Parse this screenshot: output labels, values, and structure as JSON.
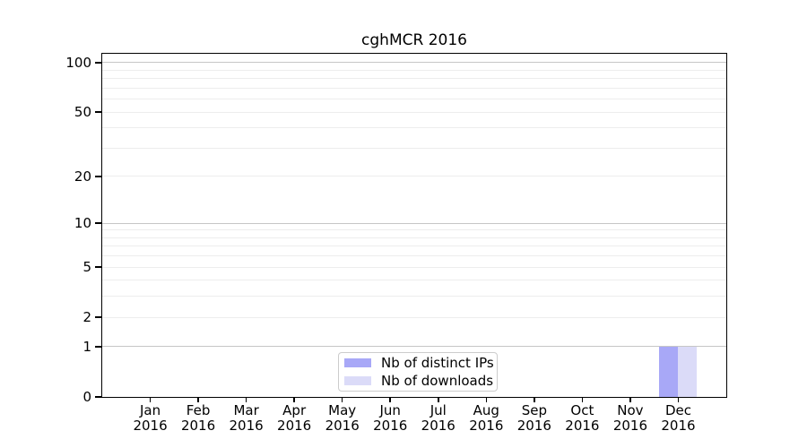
{
  "chart_data": {
    "type": "bar",
    "title": "cghMCR 2016",
    "x_tick_months": [
      "Jan",
      "Feb",
      "Mar",
      "Apr",
      "May",
      "Jun",
      "Jul",
      "Aug",
      "Sep",
      "Oct",
      "Nov",
      "Dec"
    ],
    "x_tick_year": "2016",
    "series": [
      {
        "key": "distinct-ips",
        "name": "Nb of distinct IPs",
        "color": "#a8a8f7",
        "values": [
          0,
          0,
          0,
          0,
          0,
          0,
          0,
          0,
          0,
          0,
          0,
          1
        ]
      },
      {
        "key": "downloads",
        "name": "Nb of downloads",
        "color": "#dbdbf8",
        "values": [
          0,
          0,
          0,
          0,
          0,
          0,
          0,
          0,
          0,
          0,
          0,
          1
        ]
      }
    ],
    "y_scale": "log1p",
    "ylim": [
      0,
      113
    ],
    "y_tick_values": [
      0,
      1,
      2,
      5,
      10,
      20,
      50,
      100
    ],
    "y_major_gridlines": [
      1,
      10,
      100
    ],
    "y_minor_gridlines": [
      2,
      3,
      4,
      5,
      6,
      7,
      8,
      9,
      20,
      30,
      40,
      50,
      60,
      70,
      80,
      90
    ],
    "legend_position": "lower center",
    "colors": {
      "background": "#ffffff",
      "grid_major": "#c6c6c6",
      "grid_minor": "#ededed",
      "spine": "#000000",
      "legend_border": "#cccccc",
      "text": "#000000"
    }
  }
}
